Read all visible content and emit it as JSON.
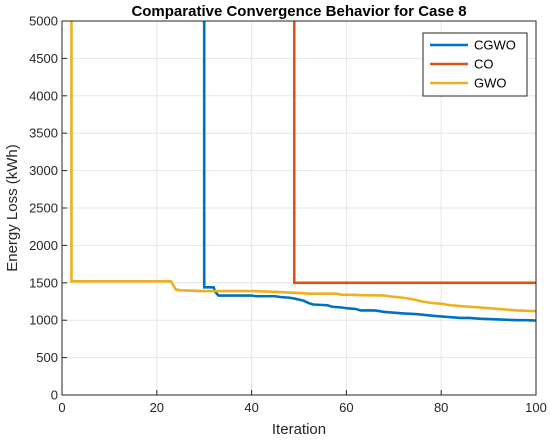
{
  "chart_data": {
    "type": "line",
    "title": "Comparative Convergence Behavior for Case 8",
    "xlabel": "Iteration",
    "ylabel": "Energy Loss (kWh)",
    "xlim": [
      0,
      100
    ],
    "ylim": [
      0,
      5000
    ],
    "xticks": [
      0,
      20,
      40,
      60,
      80,
      100
    ],
    "yticks": [
      0,
      500,
      1000,
      1500,
      2000,
      2500,
      3000,
      3500,
      4000,
      4500,
      5000
    ],
    "grid": true,
    "legend_position": "top-right",
    "series": [
      {
        "name": "CGWO",
        "color": "#0072BD",
        "x": [
          30,
          30,
          30.3,
          32,
          32.3,
          33,
          40,
          41,
          45,
          46,
          48,
          49,
          51,
          52,
          53,
          56,
          57,
          59,
          60,
          62,
          63,
          66,
          67,
          68,
          70,
          72,
          75,
          78,
          80,
          82,
          84,
          86,
          88,
          90,
          92,
          94,
          96,
          98,
          100
        ],
        "y": [
          5000,
          1440,
          1440,
          1440,
          1380,
          1330,
          1330,
          1320,
          1320,
          1310,
          1300,
          1290,
          1260,
          1230,
          1210,
          1200,
          1180,
          1170,
          1160,
          1150,
          1130,
          1130,
          1120,
          1110,
          1100,
          1090,
          1080,
          1060,
          1050,
          1040,
          1030,
          1030,
          1020,
          1015,
          1010,
          1005,
          1000,
          1000,
          995
        ]
      },
      {
        "name": "CO",
        "color": "#D95319",
        "x": [
          49,
          49,
          100
        ],
        "y": [
          5000,
          1500,
          1500
        ]
      },
      {
        "name": "GWO",
        "color": "#EDB120",
        "x": [
          2,
          2,
          23,
          24,
          25,
          30,
          31,
          40,
          45,
          51,
          52,
          58,
          59,
          62,
          63,
          68,
          69,
          72,
          74,
          76,
          78,
          80,
          82,
          84,
          86,
          88,
          90,
          92,
          94,
          96,
          98,
          100
        ],
        "y": [
          5000,
          1520,
          1520,
          1410,
          1400,
          1390,
          1390,
          1390,
          1380,
          1360,
          1355,
          1355,
          1340,
          1340,
          1335,
          1330,
          1320,
          1300,
          1280,
          1250,
          1230,
          1220,
          1200,
          1190,
          1180,
          1170,
          1160,
          1150,
          1140,
          1130,
          1125,
          1120
        ]
      }
    ]
  }
}
